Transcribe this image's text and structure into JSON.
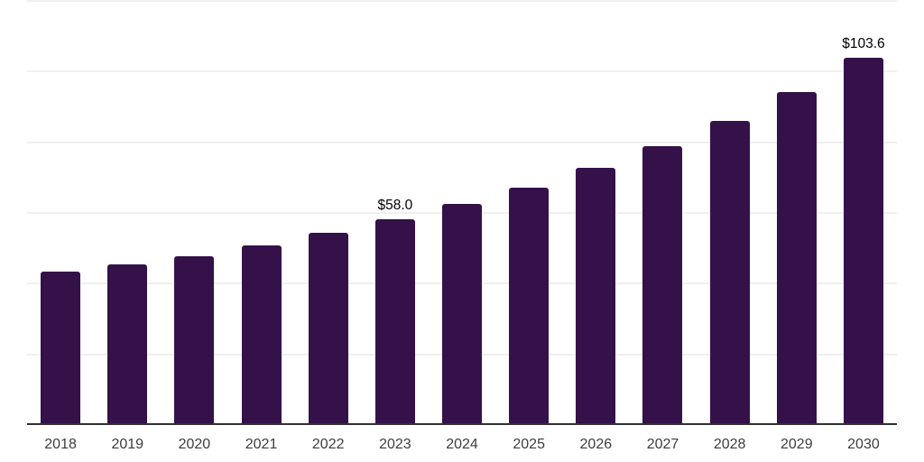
{
  "chart_data": {
    "type": "bar",
    "title": "",
    "xlabel": "",
    "ylabel": "",
    "categories": [
      "2018",
      "2019",
      "2020",
      "2021",
      "2022",
      "2023",
      "2024",
      "2025",
      "2026",
      "2027",
      "2028",
      "2029",
      "2030"
    ],
    "values": [
      43.1,
      45.2,
      47.5,
      50.6,
      54.1,
      58.0,
      62.3,
      66.9,
      72.5,
      78.6,
      85.7,
      94.0,
      103.6
    ],
    "data_labels": [
      "",
      "",
      "",
      "",
      "",
      "$58.0",
      "",
      "",
      "",
      "",
      "",
      "",
      "$103.6"
    ],
    "ylim": [
      0,
      120
    ],
    "grid_step": 20,
    "grid": "horizontal",
    "legend_position": "none",
    "y_axis_labels_visible": false,
    "colors": {
      "bar_fill": "#341148",
      "gridline": "#f0f0f2",
      "axis_line": "#303030",
      "tick_label": "#3d3d3d",
      "data_label": "#000000",
      "background": "#ffffff"
    }
  }
}
